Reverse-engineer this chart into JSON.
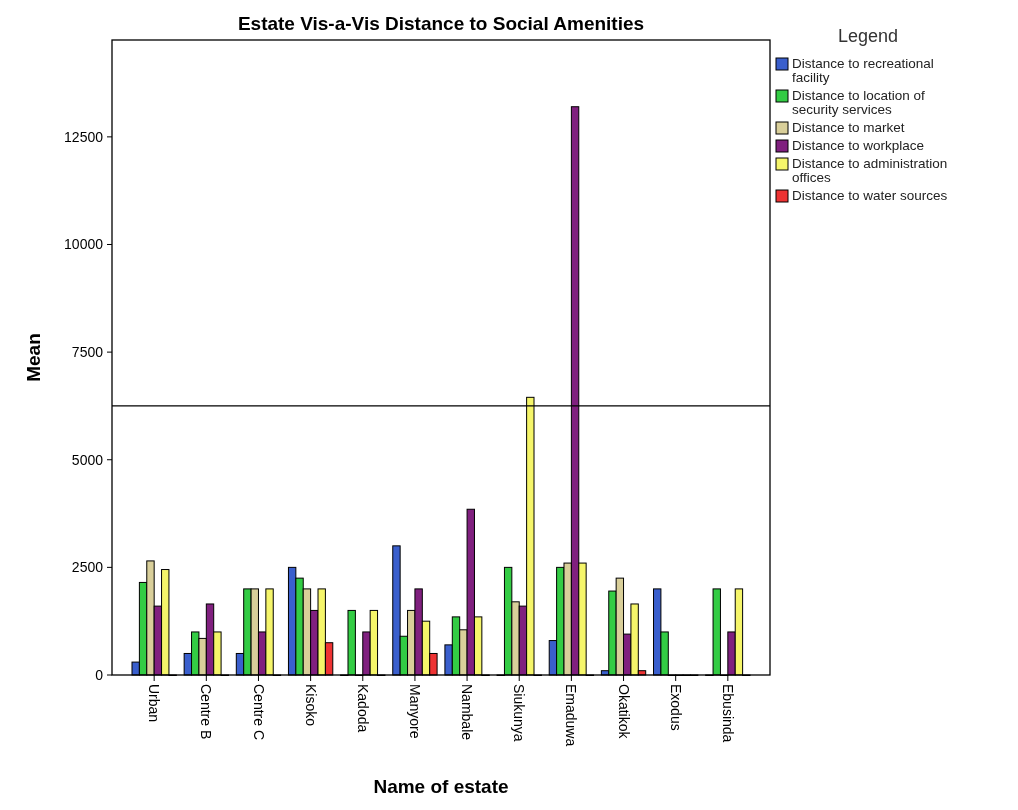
{
  "chart_data": {
    "type": "bar",
    "title": "Estate Vis-a-Vis Distance to Social Amenities",
    "xlabel": "Name of estate",
    "ylabel": "Mean",
    "legend_title": "Legend",
    "legend": "top right",
    "grid": false,
    "categories": [
      "Urban",
      "Centre B",
      "Centre C",
      "Kisoko",
      "Kadoda",
      "Manyore",
      "Nambale",
      "Siukunya",
      "Emaduwa",
      "Okatikok",
      "Exodus",
      "Ebusinda"
    ],
    "ylim": [
      0,
      14750
    ],
    "yticks": [
      0,
      2500,
      5000,
      7500,
      10000,
      12500
    ],
    "ref_lines": [
      {
        "axis": "y",
        "value": 6250,
        "color": "#000000"
      }
    ],
    "series": [
      {
        "name": "Distance to recreational facility",
        "color": "#3a5fcd",
        "values": [
          300,
          500,
          500,
          2500,
          0,
          3000,
          700,
          0,
          800,
          100,
          2000,
          0
        ]
      },
      {
        "name": "Distance to location of security services",
        "color": "#33cc44",
        "values": [
          2150,
          1000,
          2000,
          2250,
          1500,
          900,
          1350,
          2500,
          2500,
          1950,
          1000,
          2000
        ]
      },
      {
        "name": "Distance to market",
        "color": "#d9cf9a",
        "values": [
          2650,
          850,
          2000,
          2000,
          0,
          1500,
          1050,
          1700,
          2600,
          2250,
          0,
          0
        ]
      },
      {
        "name": "Distance to workplace",
        "color": "#80207f",
        "values": [
          1600,
          1650,
          1000,
          1500,
          1000,
          2000,
          3850,
          1600,
          13200,
          950,
          0,
          1000
        ]
      },
      {
        "name": "Distance to administration offices",
        "color": "#f5f56a",
        "values": [
          2450,
          1000,
          2000,
          2000,
          1500,
          1250,
          1350,
          6450,
          2600,
          1650,
          0,
          2000
        ]
      },
      {
        "name": "Distance to water sources",
        "color": "#ee3333",
        "values": [
          0,
          0,
          0,
          750,
          0,
          500,
          0,
          0,
          0,
          100,
          0,
          0
        ]
      }
    ]
  }
}
